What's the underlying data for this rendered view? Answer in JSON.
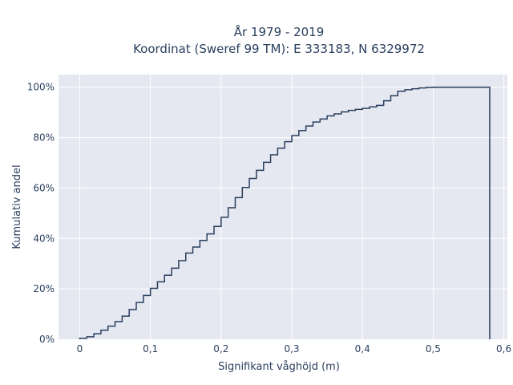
{
  "chart_data": {
    "type": "line",
    "line_shape": "step-ecdf",
    "title_lines": [
      "År 1979 - 2019",
      "Koordinat (Sweref 99 TM): E 333183, N 6329972"
    ],
    "xlabel": "Signifikant våghöjd (m)",
    "ylabel": "Kumulativ andel",
    "xlim": [
      -0.03,
      0.605
    ],
    "ylim": [
      0,
      1.05
    ],
    "xticks": [
      0,
      0.1,
      0.2,
      0.3,
      0.4,
      0.5,
      0.6
    ],
    "xtick_labels": [
      "0",
      "0,1",
      "0,2",
      "0,3",
      "0,4",
      "0,5",
      "0,6"
    ],
    "yticks": [
      0,
      0.2,
      0.4,
      0.6,
      0.8,
      1.0
    ],
    "ytick_labels": [
      "0%",
      "20%",
      "40%",
      "60%",
      "80%",
      "100%"
    ],
    "grid": true,
    "line_color": "#2a3f5f",
    "plot_bg": "#e5e8f0",
    "series": [
      {
        "x": [
          0,
          0.01,
          0.02,
          0.03,
          0.04,
          0.05,
          0.06,
          0.07,
          0.08,
          0.09,
          0.1,
          0.11,
          0.12,
          0.13,
          0.14,
          0.15,
          0.16,
          0.17,
          0.18,
          0.19,
          0.2,
          0.21,
          0.22,
          0.23,
          0.24,
          0.25,
          0.26,
          0.27,
          0.28,
          0.29,
          0.3,
          0.31,
          0.32,
          0.33,
          0.34,
          0.35,
          0.36,
          0.37,
          0.38,
          0.39,
          0.4,
          0.41,
          0.42,
          0.43,
          0.44,
          0.45,
          0.46,
          0.47,
          0.48,
          0.49,
          0.5,
          0.51,
          0.52,
          0.58
        ],
        "y": [
          0.004,
          0.01,
          0.022,
          0.036,
          0.052,
          0.07,
          0.092,
          0.118,
          0.146,
          0.174,
          0.202,
          0.228,
          0.254,
          0.282,
          0.312,
          0.342,
          0.366,
          0.392,
          0.418,
          0.448,
          0.484,
          0.522,
          0.562,
          0.602,
          0.638,
          0.67,
          0.702,
          0.732,
          0.758,
          0.784,
          0.808,
          0.828,
          0.846,
          0.862,
          0.874,
          0.886,
          0.894,
          0.902,
          0.908,
          0.912,
          0.916,
          0.922,
          0.928,
          0.946,
          0.966,
          0.984,
          0.99,
          0.994,
          0.997,
          0.999,
          1.0,
          1.0,
          1.0,
          1.0
        ]
      }
    ]
  }
}
